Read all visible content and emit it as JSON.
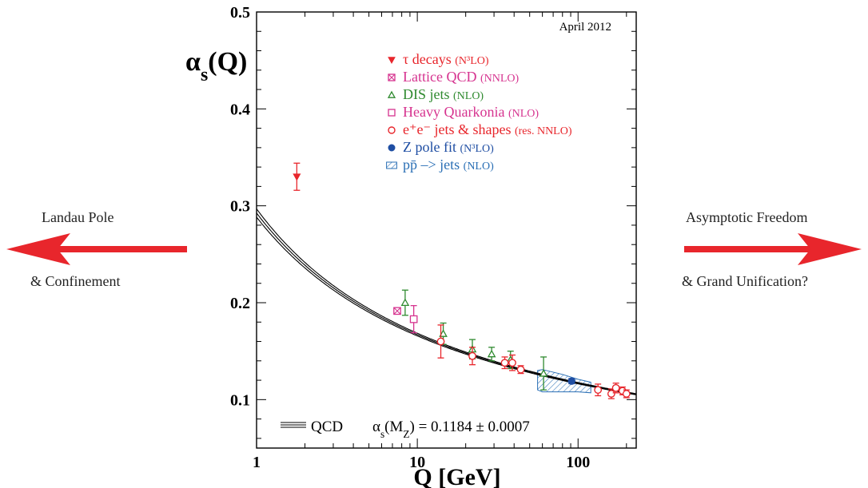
{
  "left_annotation": {
    "line1": "Landau Pole",
    "line2": "& Confinement",
    "arrow_direction": "left",
    "arrow_color": "#e8262c"
  },
  "right_annotation": {
    "line1": "Asymptotic Freedom",
    "line2": "& Grand Unification?",
    "arrow_direction": "right",
    "arrow_color": "#e8262c"
  },
  "chart_data": {
    "type": "scatter",
    "title": "",
    "date_note": "April 2012",
    "ylabel": "α",
    "ylabel_sub": "s",
    "ylabel_suffix": "(Q)",
    "xlabel": "Q [GeV]",
    "x_scale": "log",
    "xlim": [
      1,
      230
    ],
    "ylim": [
      0.05,
      0.5
    ],
    "x_ticks": [
      1,
      10,
      100
    ],
    "y_ticks": [
      0.1,
      0.2,
      0.3,
      0.4,
      0.5
    ],
    "y_tick_labels": [
      "0.1",
      "0.2",
      "0.3",
      "0.4",
      "0.5"
    ],
    "legend_placement": "top-center",
    "curve_label": "QCD",
    "fit_text": "α",
    "fit_text_sub": "s",
    "fit_text_mid": "(M",
    "fit_text_sub2": "Z",
    "fit_text_value": ") = 0.1184 ± 0.0007",
    "qcd_curve": {
      "alpha_mz": 0.1184,
      "mz": 91.19,
      "band": [
        0.1177,
        0.1191
      ]
    },
    "series": [
      {
        "name": "τ decays",
        "order": "(N³LO)",
        "color": "#e8262c",
        "marker": "triangle-down-filled",
        "points": [
          {
            "x": 1.78,
            "y": 0.33,
            "err": [
              0.014,
              0.014
            ]
          }
        ]
      },
      {
        "name": "Lattice QCD",
        "order": "(NNLO)",
        "color": "#d6338f",
        "marker": "square-x",
        "points": [
          {
            "x": 7.5,
            "y": 0.1915,
            "err": [
              0.003,
              0.003
            ]
          }
        ]
      },
      {
        "name": "DIS jets",
        "order": "(NLO)",
        "color": "#2f8a2f",
        "marker": "triangle-up-open",
        "points": [
          {
            "x": 8.4,
            "y": 0.2,
            "err": [
              0.013,
              0.013
            ]
          },
          {
            "x": 14.5,
            "y": 0.168,
            "err": [
              0.011,
              0.011
            ]
          },
          {
            "x": 22,
            "y": 0.152,
            "err": [
              0.01,
              0.01
            ]
          },
          {
            "x": 29,
            "y": 0.147,
            "err": [
              0.007,
              0.007
            ]
          },
          {
            "x": 38,
            "y": 0.141,
            "err": [
              0.009,
              0.009
            ]
          },
          {
            "x": 61,
            "y": 0.127,
            "err": [
              0.017,
              0.017
            ]
          }
        ]
      },
      {
        "name": "Heavy Quarkonia",
        "order": "(NLO)",
        "color": "#d6338f",
        "marker": "square-open",
        "points": [
          {
            "x": 9.5,
            "y": 0.183,
            "err": [
              0.014,
              0.014
            ]
          }
        ]
      },
      {
        "name": "e⁺e⁻ jets & shapes",
        "order": "(res. NNLO)",
        "color": "#e8262c",
        "marker": "circle-open",
        "points": [
          {
            "x": 14,
            "y": 0.16,
            "err": [
              0.017,
              0.017
            ]
          },
          {
            "x": 22,
            "y": 0.145,
            "err": [
              0.009,
              0.009
            ]
          },
          {
            "x": 35,
            "y": 0.138,
            "err": [
              0.006,
              0.006
            ]
          },
          {
            "x": 39,
            "y": 0.138,
            "err": [
              0.008,
              0.008
            ]
          },
          {
            "x": 44,
            "y": 0.131,
            "err": [
              0.004,
              0.004
            ]
          },
          {
            "x": 133,
            "y": 0.11,
            "err": [
              0.006,
              0.006
            ]
          },
          {
            "x": 161,
            "y": 0.106,
            "err": [
              0.005,
              0.005
            ]
          },
          {
            "x": 172,
            "y": 0.112,
            "err": [
              0.005,
              0.005
            ]
          },
          {
            "x": 189,
            "y": 0.109,
            "err": [
              0.004,
              0.004
            ]
          },
          {
            "x": 200,
            "y": 0.106,
            "err": [
              0.004,
              0.004
            ]
          }
        ]
      },
      {
        "name": "Z pole fit",
        "order": "(N³LO)",
        "color": "#1f4ea3",
        "marker": "circle-filled",
        "points": [
          {
            "x": 91.2,
            "y": 0.1191,
            "err": [
              0.0027,
              0.0027
            ]
          }
        ]
      },
      {
        "name": "pp̄ –> jets",
        "order": "(NLO)",
        "color": "#2a6fb5",
        "marker": "hatched-band",
        "band": {
          "x": [
            56,
            60,
            80,
            100,
            120
          ],
          "lo": [
            0.11,
            0.108,
            0.108,
            0.108,
            0.107
          ],
          "hi": [
            0.13,
            0.131,
            0.126,
            0.121,
            0.118
          ]
        }
      }
    ]
  }
}
